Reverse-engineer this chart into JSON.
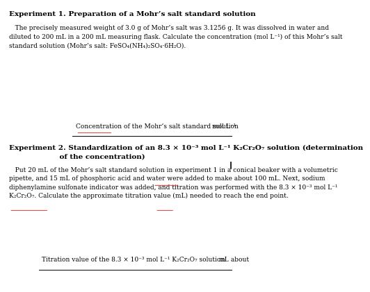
{
  "bg_color": "#ffffff",
  "exp1_title": "Experiment 1. Preparation of a Mohr’s salt standard solution",
  "exp1_body": "   The precisely measured weight of 3.0 g of Mohr’s salt was 3.1256 g. It was dissolved in water and\ndiluted to 200 mL in a 200 mL measuring flask. Calculate the concentration (mol L⁻¹) of this Mohr’s salt\nstandard solution (Mohr’s salt: FeSO₄(NH₄)₂SO₄·6H₂O).",
  "exp1_answer_label": "Concentration of the Mohr’s salt standard solution",
  "exp1_answer_unit": "mol L⁻¹",
  "exp2_title": "Experiment 2. Standardization of an 8.3 × 10⁻³ mol L⁻¹ K₂Cr₂O₇ solution (determination\n                    of the concentration)",
  "exp2_body": "   Put 20 mL of the Mohr’s salt standard solution in experiment 1 in a conical beaker with a volumetric\npipette, and 15 mL of phosphoric acid and water were added to make about 100 mL. Next, sodium\ndiphenylamine sulfonate indicator was added, and titration was performed with the 8.3 × 10⁻³ mol L⁻¹\nK₂Cr₂O₇. Calculate the approximate titration value (mL) needed to reach the end point.",
  "exp2_answer_label": "Titration value of the 8.3 × 10⁻³ mol L⁻¹ K₂Cr₂O₇ solution   about",
  "exp2_answer_unit": "mL",
  "underline_color": "#e05050"
}
